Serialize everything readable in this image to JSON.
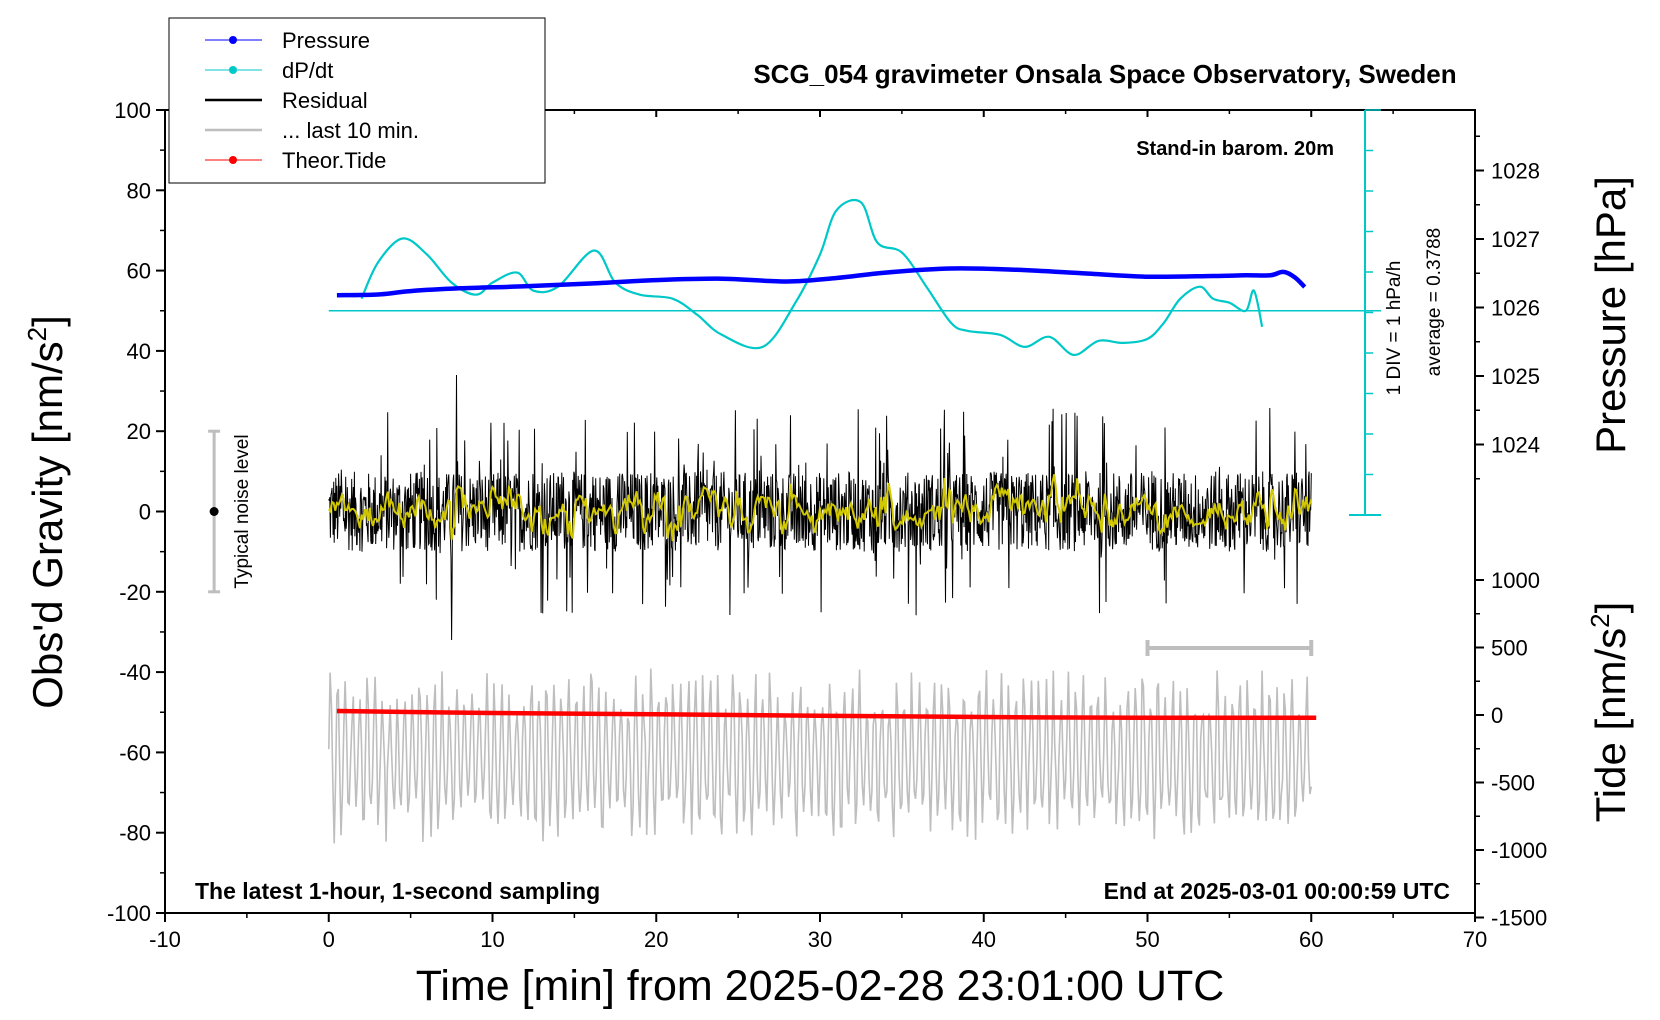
{
  "chart_data": {
    "type": "line",
    "title": "SCG_054 gravimeter Onsala Space Observatory, Sweden",
    "subtitle_right": "Stand-in barom. 20m",
    "footer_left": "The latest 1-hour, 1-second sampling",
    "footer_right": "End at 2025-03-01 00:00:59 UTC",
    "xlabel": "Time [min] from 2025-02-28 23:01:00 UTC",
    "ylabel_left_main": "Obs'd Gravity [nm/s",
    "ylabel_left_sup": "2",
    "ylabel_left_close": "]",
    "ylabel_right_pressure": "Pressure [hPa]",
    "ylabel_right_tide_main": "Tide [nm/s",
    "ylabel_right_tide_sup": "2",
    "ylabel_right_tide_close": "]",
    "xlim": [
      -10,
      70
    ],
    "ylim": [
      -100,
      100
    ],
    "x_ticks": [
      "-10",
      "0",
      "10",
      "20",
      "30",
      "40",
      "50",
      "60",
      "70"
    ],
    "y_ticks": [
      "-100",
      "-80",
      "-60",
      "-40",
      "-20",
      "0",
      "20",
      "40",
      "60",
      "80",
      "100"
    ],
    "pressure_axis": {
      "ylim": [
        1022.9,
        1028.8
      ],
      "ticks": [
        "1024",
        "1025",
        "1026",
        "1027",
        "1028"
      ]
    },
    "tide_axis": {
      "ylim": [
        -1500,
        1500
      ],
      "ticks": [
        "1000",
        "500",
        "0",
        "-500",
        "-1000",
        "-1500"
      ]
    },
    "dpdt_scale": {
      "label_div": "1 DIV = 1 hPa/h",
      "label_avg": "average = 0.3788",
      "baseline_y": 50
    },
    "noise_bar": {
      "label": "Typical noise level",
      "x": -7,
      "range": [
        -20,
        20
      ]
    },
    "last10_bar": {
      "range_x": [
        50,
        60
      ],
      "y": -33
    },
    "legend": [
      {
        "label": "Pressure",
        "color": "#0000ff",
        "marker": true
      },
      {
        "label": "dP/dt",
        "color": "#00c8c8",
        "marker": true
      },
      {
        "label": "Residual",
        "color": "#000000",
        "marker": false
      },
      {
        "label": "... last 10 min.",
        "color": "#bebebe",
        "marker": false
      },
      {
        "label": "Theor.Tide",
        "color": "#ff0000",
        "marker": true
      }
    ],
    "series": [
      {
        "name": "Pressure",
        "color": "#0000ff",
        "axis": "pressure",
        "x": [
          0.5,
          3,
          5,
          8,
          12,
          16,
          20,
          24,
          28,
          31,
          34,
          38,
          42,
          46,
          50,
          54,
          56,
          57.5,
          58.3,
          59,
          59.6
        ],
        "y": [
          1026.18,
          1026.19,
          1026.24,
          1026.28,
          1026.31,
          1026.35,
          1026.4,
          1026.42,
          1026.38,
          1026.43,
          1026.51,
          1026.57,
          1026.55,
          1026.5,
          1026.45,
          1026.46,
          1026.47,
          1026.47,
          1026.52,
          1026.44,
          1026.3
        ]
      },
      {
        "name": "dP/dt",
        "color": "#00c8c8",
        "axis": "gravity",
        "x": [
          2,
          3,
          4.5,
          6,
          7.5,
          9,
          10,
          11.5,
          12.5,
          14,
          16.2,
          17.5,
          19,
          21,
          22.5,
          24,
          26.5,
          28.5,
          30,
          31,
          32.5,
          33.5,
          35,
          36.5,
          38,
          39,
          41,
          42.5,
          44,
          45.5,
          47,
          48.5,
          50,
          51,
          52,
          53.2,
          54,
          55,
          56,
          56.5,
          57
        ],
        "y": [
          53,
          62,
          68,
          64,
          57,
          54,
          57,
          59.5,
          55,
          56,
          65,
          57,
          54,
          53,
          49,
          44,
          41,
          52,
          64,
          75,
          77,
          67,
          64.5,
          56,
          47,
          45,
          44,
          41,
          43.5,
          39,
          42.5,
          42,
          43,
          47,
          53,
          56,
          53,
          52,
          50,
          55,
          46
        ]
      },
      {
        "name": "Residual",
        "color": "#000000",
        "axis": "gravity",
        "x_range": [
          0,
          60
        ],
        "amplitude_approx": 30,
        "extremes": [
          34,
          -32
        ]
      },
      {
        "name": "Residual smoothed",
        "color": "#d2c800",
        "axis": "gravity",
        "x_range": [
          0,
          60
        ],
        "amplitude_approx": 3
      },
      {
        "name": "... last 10 min.",
        "color": "#bebebe",
        "axis": "gravity",
        "x_range": [
          0,
          60
        ],
        "y_range": [
          -86,
          -37
        ]
      },
      {
        "name": "Theor.Tide",
        "color": "#ff0000",
        "axis": "tide",
        "x": [
          0.5,
          10,
          20,
          30,
          40,
          50,
          60.3
        ],
        "y": [
          30,
          15,
          5,
          -5,
          -15,
          -20,
          -20
        ]
      }
    ]
  }
}
